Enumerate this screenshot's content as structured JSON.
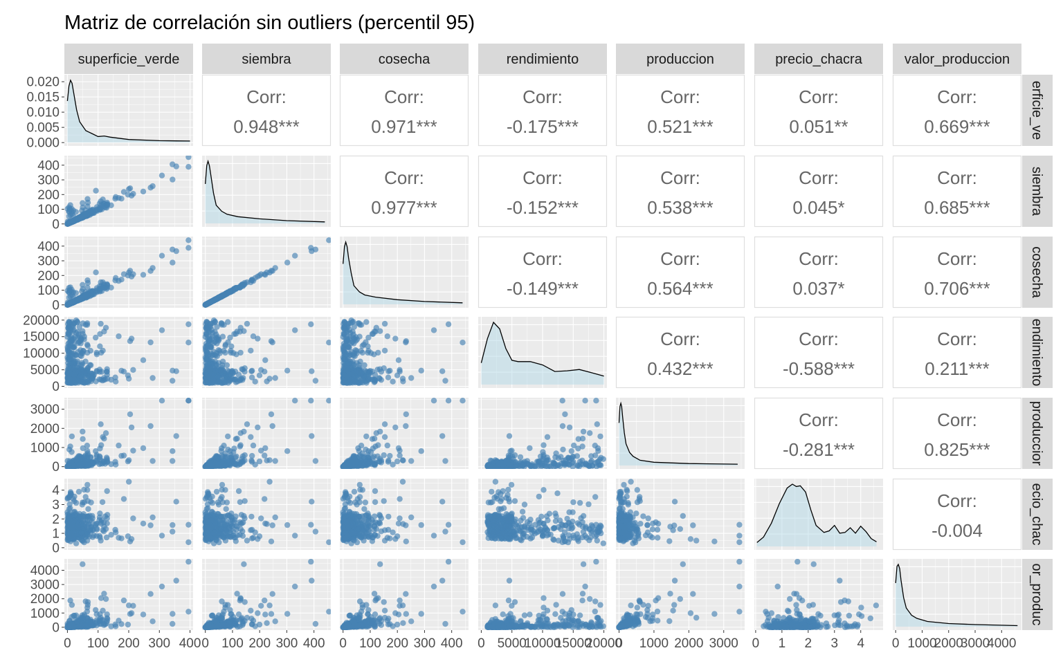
{
  "chart_data": {
    "type": "scatter",
    "title": "Matriz de correlación sin outliers (percentil 95)",
    "variables": [
      "superficie_verde",
      "siembra",
      "cosecha",
      "rendimiento",
      "produccion",
      "precio_chacra",
      "valor_produccion"
    ],
    "right_strip_labels": [
      "erficie_ve",
      "siembra",
      "cosecha",
      "endimiento",
      "produccior",
      "ecio_chac",
      "or_produc"
    ],
    "corr_label": "Corr:",
    "correlations": [
      {
        "row": 0,
        "col": 1,
        "value": "0.948***"
      },
      {
        "row": 0,
        "col": 2,
        "value": "0.971***"
      },
      {
        "row": 0,
        "col": 3,
        "value": "-0.175***"
      },
      {
        "row": 0,
        "col": 4,
        "value": "0.521***"
      },
      {
        "row": 0,
        "col": 5,
        "value": "0.051**"
      },
      {
        "row": 0,
        "col": 6,
        "value": "0.669***"
      },
      {
        "row": 1,
        "col": 2,
        "value": "0.977***"
      },
      {
        "row": 1,
        "col": 3,
        "value": "-0.152***"
      },
      {
        "row": 1,
        "col": 4,
        "value": "0.538***"
      },
      {
        "row": 1,
        "col": 5,
        "value": "0.045*"
      },
      {
        "row": 1,
        "col": 6,
        "value": "0.685***"
      },
      {
        "row": 2,
        "col": 3,
        "value": "-0.149***"
      },
      {
        "row": 2,
        "col": 4,
        "value": "0.564***"
      },
      {
        "row": 2,
        "col": 5,
        "value": "0.037*"
      },
      {
        "row": 2,
        "col": 6,
        "value": "0.706***"
      },
      {
        "row": 3,
        "col": 4,
        "value": "0.432***"
      },
      {
        "row": 3,
        "col": 5,
        "value": "-0.588***"
      },
      {
        "row": 3,
        "col": 6,
        "value": "0.211***"
      },
      {
        "row": 4,
        "col": 5,
        "value": "-0.281***"
      },
      {
        "row": 4,
        "col": 6,
        "value": "0.825***"
      },
      {
        "row": 5,
        "col": 6,
        "value": "-0.004"
      }
    ],
    "x_axes": [
      {
        "var": "superficie_verde",
        "range": [
          -10,
          410
        ],
        "ticks": [
          "0",
          "100",
          "200",
          "300",
          "400"
        ],
        "tick_values": [
          0,
          100,
          200,
          300,
          400
        ]
      },
      {
        "var": "siembra",
        "range": [
          -12,
          462
        ],
        "ticks": [
          "0",
          "100",
          "200",
          "300",
          "400"
        ],
        "tick_values": [
          0,
          100,
          200,
          300,
          400
        ]
      },
      {
        "var": "cosecha",
        "range": [
          -12,
          462
        ],
        "ticks": [
          "0",
          "100",
          "200",
          "300",
          "400"
        ],
        "tick_values": [
          0,
          100,
          200,
          300,
          400
        ]
      },
      {
        "var": "rendimiento",
        "range": [
          -500,
          20500
        ],
        "ticks": [
          "0",
          "5000",
          "10000",
          "15000",
          "20000"
        ],
        "tick_values": [
          0,
          5000,
          10000,
          15000,
          20000
        ]
      },
      {
        "var": "produccion",
        "range": [
          -90,
          3600
        ],
        "ticks": [
          "0",
          "1000",
          "2000",
          "3000"
        ],
        "tick_values": [
          0,
          1000,
          2000,
          3000
        ]
      },
      {
        "var": "precio_chacra",
        "range": [
          -0.05,
          4.85
        ],
        "ticks": [
          "0",
          "1",
          "2",
          "3",
          "4"
        ],
        "tick_values": [
          0,
          1,
          2,
          3,
          4
        ]
      },
      {
        "var": "valor_produccion",
        "range": [
          -110,
          4750
        ],
        "ticks": [
          "0",
          "1000",
          "2000",
          "3000",
          "4000"
        ],
        "tick_values": [
          0,
          1000,
          2000,
          3000,
          4000
        ]
      }
    ],
    "y_axes": [
      {
        "var": "superficie_verde",
        "density_range": [
          -0.0011,
          0.0223
        ],
        "ticks": [
          "0.000",
          "0.005",
          "0.010",
          "0.015",
          "0.020"
        ],
        "tick_values": [
          0,
          0.005,
          0.01,
          0.015,
          0.02
        ]
      },
      {
        "var": "siembra",
        "range": [
          -20,
          465
        ],
        "ticks": [
          "0",
          "100",
          "200",
          "300",
          "400"
        ],
        "tick_values": [
          0,
          100,
          200,
          300,
          400
        ]
      },
      {
        "var": "cosecha",
        "range": [
          -20,
          465
        ],
        "ticks": [
          "0",
          "100",
          "200",
          "300",
          "400"
        ],
        "tick_values": [
          0,
          100,
          200,
          300,
          400
        ]
      },
      {
        "var": "rendimiento",
        "range": [
          -500,
          21000
        ],
        "ticks": [
          "0",
          "5000",
          "10000",
          "15000",
          "20000"
        ],
        "tick_values": [
          0,
          5000,
          10000,
          15000,
          20000
        ]
      },
      {
        "var": "produccion",
        "range": [
          -120,
          3600
        ],
        "ticks": [
          "0",
          "1000",
          "2000",
          "3000"
        ],
        "tick_values": [
          0,
          1000,
          2000,
          3000
        ]
      },
      {
        "var": "precio_chacra",
        "range": [
          -0.15,
          4.8
        ],
        "ticks": [
          "0",
          "1",
          "2",
          "3",
          "4"
        ],
        "tick_values": [
          0,
          1,
          2,
          3,
          4
        ]
      },
      {
        "var": "valor_produccion",
        "range": [
          -200,
          4800
        ],
        "ticks": [
          "0",
          "1000",
          "2000",
          "3000",
          "4000"
        ],
        "tick_values": [
          0,
          1000,
          2000,
          3000,
          4000
        ]
      }
    ],
    "densities": [
      {
        "var": "superficie_verde",
        "x": [
          0,
          5,
          10,
          15,
          20,
          30,
          40,
          60,
          80,
          100,
          120,
          140,
          200,
          300,
          400
        ],
        "y": [
          0.014,
          0.019,
          0.021,
          0.02,
          0.017,
          0.011,
          0.007,
          0.004,
          0.003,
          0.002,
          0.0022,
          0.0018,
          0.001,
          0.0006,
          0.0005
        ]
      },
      {
        "var": "siembra",
        "x": [
          0,
          5,
          10,
          15,
          20,
          30,
          40,
          60,
          80,
          120,
          200,
          300,
          440
        ],
        "y": [
          0.013,
          0.019,
          0.0205,
          0.019,
          0.016,
          0.01,
          0.006,
          0.004,
          0.003,
          0.0022,
          0.0015,
          0.0009,
          0.0005
        ]
      },
      {
        "var": "cosecha",
        "x": [
          0,
          5,
          10,
          15,
          20,
          30,
          40,
          60,
          80,
          120,
          200,
          300,
          440
        ],
        "y": [
          0.013,
          0.0185,
          0.02,
          0.0185,
          0.015,
          0.01,
          0.006,
          0.004,
          0.003,
          0.0023,
          0.0015,
          0.0009,
          0.0005
        ]
      },
      {
        "var": "rendimiento",
        "x": [
          0,
          1000,
          2000,
          3000,
          4000,
          5000,
          6000,
          8000,
          10000,
          12000,
          14000,
          16000,
          18000,
          20000
        ],
        "y": [
          0.33,
          0.7,
          0.95,
          0.85,
          0.55,
          0.37,
          0.35,
          0.35,
          0.3,
          0.2,
          0.21,
          0.23,
          0.18,
          0.13
        ]
      },
      {
        "var": "produccion",
        "x": [
          0,
          25,
          50,
          75,
          100,
          150,
          200,
          300,
          400,
          600,
          1000,
          2000,
          3400
        ],
        "y": [
          0.0065,
          0.009,
          0.0095,
          0.009,
          0.0075,
          0.005,
          0.0033,
          0.002,
          0.0014,
          0.0008,
          0.0005,
          0.0003,
          0.0002
        ]
      },
      {
        "var": "precio_chacra",
        "x": [
          0.05,
          0.3,
          0.6,
          0.9,
          1.2,
          1.4,
          1.55,
          1.7,
          1.9,
          2.1,
          2.3,
          2.6,
          2.8,
          3.0,
          3.2,
          3.4,
          3.6,
          3.8,
          4.0,
          4.2,
          4.4,
          4.6
        ],
        "y": [
          0.05,
          0.12,
          0.3,
          0.55,
          0.75,
          0.8,
          0.77,
          0.78,
          0.7,
          0.47,
          0.27,
          0.18,
          0.2,
          0.27,
          0.17,
          0.18,
          0.24,
          0.17,
          0.26,
          0.19,
          0.1,
          0.06
        ]
      },
      {
        "var": "valor_produccion",
        "x": [
          0,
          50,
          100,
          150,
          200,
          300,
          400,
          600,
          800,
          1200,
          2000,
          3000,
          4600
        ],
        "y": [
          0.0042,
          0.0058,
          0.006,
          0.0056,
          0.0045,
          0.0028,
          0.0018,
          0.0011,
          0.0008,
          0.0005,
          0.0003,
          0.0002,
          0.0001
        ]
      }
    ],
    "colors": {
      "points": "#4682B4",
      "density_fill": "#ADD8E6",
      "density_line": "#000000",
      "panel_bg": "#EBEBEB",
      "grid": "#FFFFFF",
      "strip_bg": "#D9D9D9",
      "corr_text": "#666666",
      "corr_panel_border": "#DEDEDE"
    },
    "grid": true,
    "legend": "none"
  }
}
